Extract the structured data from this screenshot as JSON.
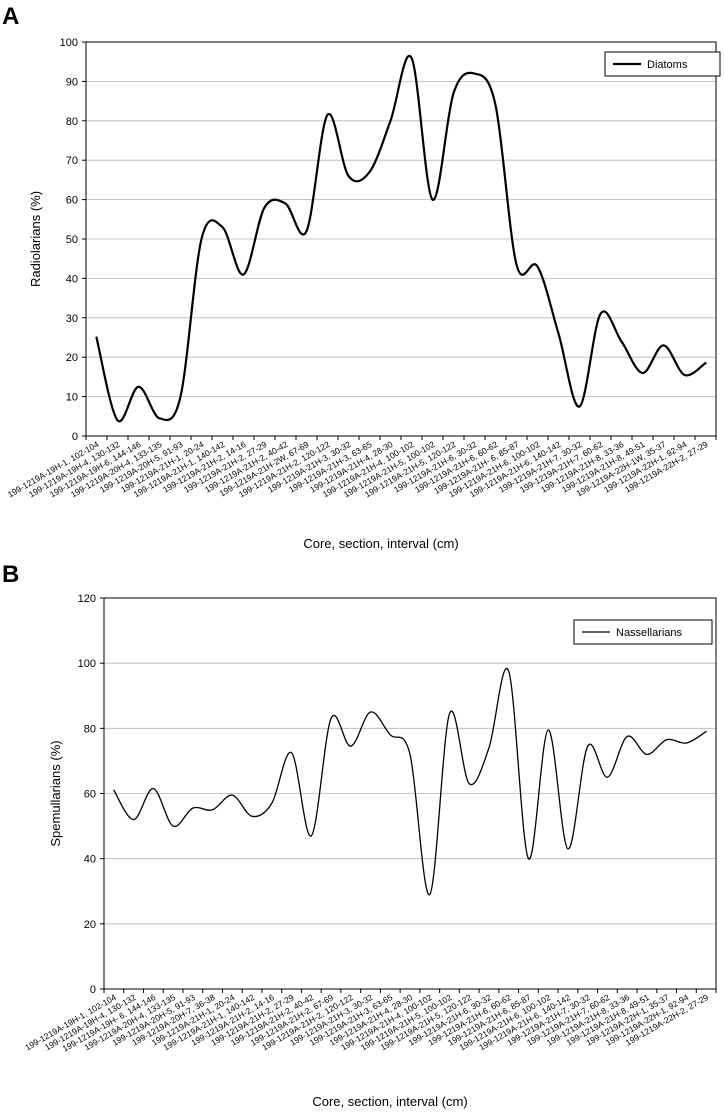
{
  "chart_data": [
    {
      "panel": "A",
      "type": "line",
      "title": "",
      "xlabel": "Core, section, interval (cm)",
      "ylabel": "Radiolarians (%)",
      "ylim": [
        0,
        100
      ],
      "yticks": [
        0,
        10,
        20,
        30,
        40,
        50,
        60,
        70,
        80,
        90,
        100
      ],
      "grid": true,
      "legend_position": "top-right",
      "categories": [
        "199-1219A-19H-1, 102-104",
        "199-1219A-19H-4, 130-132",
        "199-1219A-19H-6, 144-146",
        "199-1219A-20H-4, 133-135",
        "199-1219A-20H-5, 91-93",
        "199-1219A-21H-1, 20-24",
        "199-1219A-21H-1, 140-142",
        "199-1219A-21H-2, 14-16",
        "199-1219A-21H-2, 27-29",
        "199-1219A-21H-2, 40-42",
        "199-1219A-21H-2W, 67-69",
        "199-1219A-21H-2, 120-122",
        "199-1219A-21H-3, 30-32",
        "199-1219A-21H-3, 63-65",
        "199-1219A-21H-4, 28-30",
        "199-1219A-21H-4, 100-102",
        "199-1219A-21H-5, 100-102",
        "199-1219A-21H-5, 120-122",
        "199-1219A-21H-6, 30-32",
        "199-1219A-21H-6, 60-62",
        "199-1219A-21H- 6, 85-87",
        "199-1219A-21H-6, 100-102",
        "199-1219A-21H-6, 140-142",
        "199-1219A-21H-7, 30-32",
        "199-1219A-21H-7, 60-62",
        "199-1219A-21H-8, 33-36",
        "199-1219A-21H-8, 49-51",
        "199-1219A-22H-1W, 35-37",
        "199-1219A-22H-1, 92-94",
        "199-1219A-22H-2, 27-29"
      ],
      "series": [
        {
          "name": "Diatoms",
          "color": "#000000",
          "values": [
            25,
            4,
            12.5,
            4.5,
            10,
            50,
            53,
            41,
            58,
            59,
            52,
            81.5,
            66,
            67,
            80,
            96,
            60,
            87,
            92,
            84,
            43.5,
            43,
            26,
            7.5,
            31,
            24,
            16,
            23,
            15.5,
            18.5
          ]
        }
      ]
    },
    {
      "panel": "B",
      "type": "line",
      "title": "",
      "xlabel": "Core, section, interval (cm)",
      "ylabel": "Spemullarians (%)",
      "ylim": [
        0,
        120
      ],
      "yticks": [
        0,
        20,
        40,
        60,
        80,
        100,
        120
      ],
      "grid": true,
      "legend_position": "top-right",
      "categories": [
        "199-1219A-19H-1, 102-104",
        "199-1219A-19H-4, 130-132",
        "199-1219A-19H- 6, 144-146",
        "199-1219A-20H-4, 133-135",
        "199-1219A-20H-5, 91-93",
        "199-1219A-20H-7, 36-38",
        "199-1219A-21H-1, 20-24",
        "199-1219A-21H-1, 140-142",
        "199-1219A-21H-2, 14-16",
        "199-1219A-21H-2, 27-29",
        "199-1219A-21H-2, 40-42",
        "199-1219A-21H-2, 67-69",
        "199-1219A-21H-2, 120-122",
        "199-1219A-21H-3, 30-32",
        "199-1219A-21H-3, 63-65",
        "199-1219A-21H-4, 28-30",
        "199-1219A-21H-4, 100-102",
        "199-1219A-21H-5, 100-102",
        "199-1219A-21H-5, 120-122",
        "199-1219A-21H-6, 30-32",
        "199-1219A-21H-6, 60-62",
        "199-1219A-21H-6, 85-87",
        "199-1219A-21H-6, 100-102",
        "199-1219A-21H-6, 140-142",
        "199-1219A-21H-7, 30-32",
        "199-1219A-21H-7, 60-62",
        "199-1219A-21H-8, 33-36",
        "199-1219A-21H-8, 49-51",
        "199-1219A-22H-1, 35-37",
        "199-1219A-22H-1, 92-94",
        "199-1219A-22H-2, 27-29"
      ],
      "series": [
        {
          "name": "Nassellarians",
          "color": "#000000",
          "values": [
            61,
            52,
            61.5,
            50,
            55.5,
            55,
            59.5,
            53,
            57,
            72.5,
            47,
            83,
            74.5,
            85,
            78,
            72,
            29,
            84.5,
            63,
            74,
            97.5,
            40,
            79.5,
            43,
            74.5,
            65,
            77.5,
            72,
            76.5,
            75.5,
            79
          ]
        }
      ]
    }
  ]
}
